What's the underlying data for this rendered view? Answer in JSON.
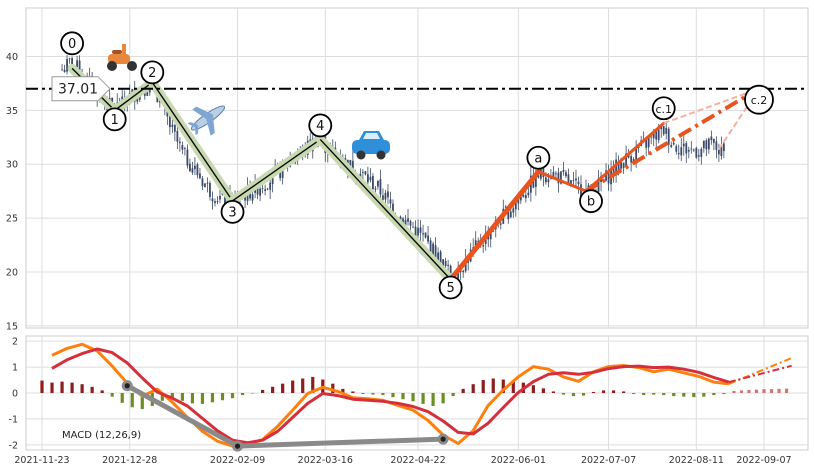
{
  "chart_data": [
    {
      "type": "line",
      "panel": "price",
      "description_type": "candlestick",
      "x_dates": [
        "2021-11-23",
        "2021-12-28",
        "2022-02-09",
        "2022-03-16",
        "2022-04-22",
        "2022-06-01",
        "2022-07-07",
        "2022-08-11",
        "2022-09-07"
      ],
      "y_ticks": [
        15,
        20,
        25,
        30,
        35,
        40
      ],
      "ylim": [
        14.8,
        44.5
      ],
      "grid": true,
      "price_series": [
        [
          "2021-12-01",
          38.8
        ],
        [
          "2021-12-05",
          39.5
        ],
        [
          "2021-12-09",
          38.3
        ],
        [
          "2021-12-13",
          37.2
        ],
        [
          "2021-12-17",
          36.0
        ],
        [
          "2021-12-21",
          35.2
        ],
        [
          "2021-12-25",
          35.5
        ],
        [
          "2021-12-28",
          36.3
        ],
        [
          "2022-01-02",
          37.0
        ],
        [
          "2022-01-06",
          37.6
        ],
        [
          "2022-01-10",
          35.3
        ],
        [
          "2022-01-14",
          33.0
        ],
        [
          "2022-01-18",
          31.0
        ],
        [
          "2022-01-22",
          29.8
        ],
        [
          "2022-01-26",
          28.5
        ],
        [
          "2022-01-30",
          27.3
        ],
        [
          "2022-02-03",
          26.7
        ],
        [
          "2022-02-07",
          26.5
        ],
        [
          "2022-02-12",
          27.2
        ],
        [
          "2022-02-17",
          27.9
        ],
        [
          "2022-02-22",
          28.6
        ],
        [
          "2022-02-27",
          29.6
        ],
        [
          "2022-03-04",
          30.7
        ],
        [
          "2022-03-09",
          31.6
        ],
        [
          "2022-03-13",
          32.4
        ],
        [
          "2022-03-17",
          31.5
        ],
        [
          "2022-03-22",
          30.6
        ],
        [
          "2022-03-27",
          29.6
        ],
        [
          "2022-04-01",
          28.8
        ],
        [
          "2022-04-06",
          27.8
        ],
        [
          "2022-04-11",
          26.2
        ],
        [
          "2022-04-16",
          24.9
        ],
        [
          "2022-04-21",
          23.9
        ],
        [
          "2022-04-26",
          22.6
        ],
        [
          "2022-05-01",
          21.0
        ],
        [
          "2022-05-05",
          19.7
        ],
        [
          "2022-05-10",
          20.8
        ],
        [
          "2022-05-15",
          22.2
        ],
        [
          "2022-05-20",
          23.6
        ],
        [
          "2022-05-25",
          24.9
        ],
        [
          "2022-05-30",
          26.2
        ],
        [
          "2022-06-04",
          27.6
        ],
        [
          "2022-06-09",
          29.0
        ],
        [
          "2022-06-14",
          29.2
        ],
        [
          "2022-06-19",
          28.6
        ],
        [
          "2022-06-24",
          27.8
        ],
        [
          "2022-06-29",
          27.4
        ],
        [
          "2022-07-04",
          28.2
        ],
        [
          "2022-07-09",
          29.5
        ],
        [
          "2022-07-14",
          30.5
        ],
        [
          "2022-07-19",
          31.4
        ],
        [
          "2022-07-24",
          32.3
        ],
        [
          "2022-07-29",
          33.2
        ],
        [
          "2022-08-02",
          31.8
        ],
        [
          "2022-08-07",
          31.4
        ],
        [
          "2022-08-12",
          31.3
        ],
        [
          "2022-08-17",
          31.8
        ],
        [
          "2022-08-22",
          31.0
        ]
      ],
      "horizontal_line": {
        "value": 37.01,
        "label": "37.01",
        "style": "dash-dot"
      },
      "wave_points": [
        {
          "label": "0",
          "date": "2021-12-05",
          "value": 38.9
        },
        {
          "label": "1",
          "date": "2021-12-22",
          "value": 35.0
        },
        {
          "label": "2",
          "date": "2022-01-06",
          "value": 37.6
        },
        {
          "label": "3",
          "date": "2022-02-07",
          "value": 26.6
        },
        {
          "label": "4",
          "date": "2022-03-14",
          "value": 32.3
        },
        {
          "label": "5",
          "date": "2022-05-05",
          "value": 19.3
        },
        {
          "label": "a",
          "date": "2022-06-09",
          "value": 29.3
        },
        {
          "label": "b",
          "date": "2022-06-28",
          "value": 27.5
        },
        {
          "label": "c.1",
          "date": "2022-07-29",
          "value": 33.8
        },
        {
          "label": "c.2",
          "date": "2022-09-05",
          "value": 37.01
        }
      ],
      "projection": {
        "from_date": "2022-08-20",
        "to": "c.2"
      },
      "icons": [
        "scooter-icon",
        "airplane-icon",
        "car-icon"
      ]
    },
    {
      "type": "line",
      "panel": "macd",
      "label": "MACD (12,26,9)",
      "y_ticks": [
        -2,
        -1,
        0,
        1,
        2
      ],
      "ylim": [
        -2.2,
        2.2
      ],
      "grid": true,
      "macd_series": [
        [
          "2021-11-27",
          1.45
        ],
        [
          "2021-12-03",
          1.72
        ],
        [
          "2021-12-09",
          1.88
        ],
        [
          "2021-12-15",
          1.62
        ],
        [
          "2021-12-21",
          1.04
        ],
        [
          "2021-12-27",
          0.38
        ],
        [
          "2022-01-02",
          -0.12
        ],
        [
          "2022-01-08",
          0.15
        ],
        [
          "2022-01-14",
          -0.36
        ],
        [
          "2022-01-20",
          -0.94
        ],
        [
          "2022-01-26",
          -1.48
        ],
        [
          "2022-02-01",
          -1.86
        ],
        [
          "2022-02-07",
          -2.05
        ],
        [
          "2022-02-13",
          -1.98
        ],
        [
          "2022-02-19",
          -1.8
        ],
        [
          "2022-02-25",
          -1.28
        ],
        [
          "2022-03-03",
          -0.66
        ],
        [
          "2022-03-09",
          -0.02
        ],
        [
          "2022-03-15",
          0.22
        ],
        [
          "2022-03-21",
          0.06
        ],
        [
          "2022-03-27",
          -0.18
        ],
        [
          "2022-04-02",
          -0.22
        ],
        [
          "2022-04-08",
          -0.28
        ],
        [
          "2022-04-14",
          -0.48
        ],
        [
          "2022-04-20",
          -0.66
        ],
        [
          "2022-04-26",
          -1.06
        ],
        [
          "2022-05-02",
          -1.62
        ],
        [
          "2022-05-08",
          -1.95
        ],
        [
          "2022-05-14",
          -1.45
        ],
        [
          "2022-05-20",
          -0.48
        ],
        [
          "2022-05-26",
          0.12
        ],
        [
          "2022-06-01",
          0.62
        ],
        [
          "2022-06-07",
          1.02
        ],
        [
          "2022-06-13",
          0.92
        ],
        [
          "2022-06-19",
          0.62
        ],
        [
          "2022-06-25",
          0.45
        ],
        [
          "2022-07-01",
          0.82
        ],
        [
          "2022-07-07",
          1.02
        ],
        [
          "2022-07-13",
          1.06
        ],
        [
          "2022-07-19",
          0.98
        ],
        [
          "2022-07-25",
          0.82
        ],
        [
          "2022-07-31",
          0.92
        ],
        [
          "2022-08-06",
          0.78
        ],
        [
          "2022-08-12",
          0.64
        ],
        [
          "2022-08-18",
          0.42
        ],
        [
          "2022-08-24",
          0.35
        ]
      ],
      "signal_series": [
        [
          "2021-11-27",
          0.95
        ],
        [
          "2021-12-03",
          1.28
        ],
        [
          "2021-12-09",
          1.52
        ],
        [
          "2021-12-15",
          1.7
        ],
        [
          "2021-12-21",
          1.56
        ],
        [
          "2021-12-27",
          1.16
        ],
        [
          "2022-01-02",
          0.58
        ],
        [
          "2022-01-08",
          0.04
        ],
        [
          "2022-01-14",
          -0.2
        ],
        [
          "2022-01-20",
          -0.5
        ],
        [
          "2022-01-26",
          -0.98
        ],
        [
          "2022-02-01",
          -1.46
        ],
        [
          "2022-02-07",
          -1.82
        ],
        [
          "2022-02-13",
          -1.92
        ],
        [
          "2022-02-19",
          -1.82
        ],
        [
          "2022-02-25",
          -1.48
        ],
        [
          "2022-03-03",
          -0.94
        ],
        [
          "2022-03-09",
          -0.4
        ],
        [
          "2022-03-15",
          -0.02
        ],
        [
          "2022-03-21",
          -0.1
        ],
        [
          "2022-03-27",
          -0.24
        ],
        [
          "2022-04-02",
          -0.28
        ],
        [
          "2022-04-08",
          -0.32
        ],
        [
          "2022-04-14",
          -0.4
        ],
        [
          "2022-04-20",
          -0.52
        ],
        [
          "2022-04-26",
          -0.72
        ],
        [
          "2022-05-02",
          -1.08
        ],
        [
          "2022-05-08",
          -1.52
        ],
        [
          "2022-05-14",
          -1.58
        ],
        [
          "2022-05-20",
          -1.16
        ],
        [
          "2022-05-26",
          -0.56
        ],
        [
          "2022-06-01",
          0.02
        ],
        [
          "2022-06-07",
          0.44
        ],
        [
          "2022-06-13",
          0.72
        ],
        [
          "2022-06-19",
          0.78
        ],
        [
          "2022-06-25",
          0.72
        ],
        [
          "2022-07-01",
          0.8
        ],
        [
          "2022-07-07",
          0.94
        ],
        [
          "2022-07-13",
          1.02
        ],
        [
          "2022-07-19",
          1.04
        ],
        [
          "2022-07-25",
          0.98
        ],
        [
          "2022-07-31",
          1.0
        ],
        [
          "2022-08-06",
          0.92
        ],
        [
          "2022-08-12",
          0.8
        ],
        [
          "2022-08-18",
          0.6
        ],
        [
          "2022-08-24",
          0.42
        ]
      ],
      "histogram": [
        [
          "2021-11-23",
          0.48
        ],
        [
          "2021-11-27",
          0.4
        ],
        [
          "2021-12-01",
          0.44
        ],
        [
          "2021-12-05",
          0.4
        ],
        [
          "2021-12-09",
          0.34
        ],
        [
          "2021-12-13",
          0.24
        ],
        [
          "2021-12-17",
          0.1
        ],
        [
          "2021-12-21",
          -0.14
        ],
        [
          "2021-12-25",
          -0.38
        ],
        [
          "2021-12-29",
          -0.55
        ],
        [
          "2022-01-02",
          -0.62
        ],
        [
          "2022-01-06",
          -0.5
        ],
        [
          "2022-01-10",
          -0.3
        ],
        [
          "2022-01-14",
          -0.2
        ],
        [
          "2022-01-18",
          -0.3
        ],
        [
          "2022-01-22",
          -0.4
        ],
        [
          "2022-01-26",
          -0.42
        ],
        [
          "2022-01-30",
          -0.36
        ],
        [
          "2022-02-03",
          -0.28
        ],
        [
          "2022-02-07",
          -0.2
        ],
        [
          "2022-02-11",
          -0.08
        ],
        [
          "2022-02-15",
          -0.02
        ],
        [
          "2022-02-19",
          0.12
        ],
        [
          "2022-02-23",
          0.24
        ],
        [
          "2022-02-27",
          0.36
        ],
        [
          "2022-03-03",
          0.48
        ],
        [
          "2022-03-07",
          0.56
        ],
        [
          "2022-03-11",
          0.62
        ],
        [
          "2022-03-15",
          0.52
        ],
        [
          "2022-03-19",
          0.36
        ],
        [
          "2022-03-23",
          0.16
        ],
        [
          "2022-03-27",
          0.06
        ],
        [
          "2022-03-31",
          -0.04
        ],
        [
          "2022-04-04",
          -0.06
        ],
        [
          "2022-04-08",
          -0.08
        ],
        [
          "2022-04-12",
          -0.16
        ],
        [
          "2022-04-16",
          -0.24
        ],
        [
          "2022-04-20",
          -0.32
        ],
        [
          "2022-04-24",
          -0.42
        ],
        [
          "2022-04-28",
          -0.5
        ],
        [
          "2022-05-02",
          -0.4
        ],
        [
          "2022-05-06",
          -0.12
        ],
        [
          "2022-05-10",
          0.16
        ],
        [
          "2022-05-14",
          0.34
        ],
        [
          "2022-05-18",
          0.5
        ],
        [
          "2022-05-22",
          0.56
        ],
        [
          "2022-05-26",
          0.52
        ],
        [
          "2022-05-30",
          0.46
        ],
        [
          "2022-06-03",
          0.4
        ],
        [
          "2022-06-07",
          0.3
        ],
        [
          "2022-06-11",
          0.18
        ],
        [
          "2022-06-15",
          0.06
        ],
        [
          "2022-06-19",
          -0.06
        ],
        [
          "2022-06-23",
          -0.12
        ],
        [
          "2022-06-27",
          -0.1
        ],
        [
          "2022-07-01",
          0.04
        ],
        [
          "2022-07-05",
          0.1
        ],
        [
          "2022-07-09",
          0.1
        ],
        [
          "2022-07-13",
          0.06
        ],
        [
          "2022-07-17",
          -0.04
        ],
        [
          "2022-07-21",
          -0.08
        ],
        [
          "2022-07-25",
          -0.06
        ],
        [
          "2022-07-29",
          -0.08
        ],
        [
          "2022-08-02",
          -0.12
        ],
        [
          "2022-08-06",
          -0.14
        ],
        [
          "2022-08-10",
          -0.16
        ],
        [
          "2022-08-14",
          -0.14
        ],
        [
          "2022-08-18",
          -0.08
        ],
        [
          "2022-08-22",
          -0.04
        ]
      ],
      "histogram_projection": [
        [
          "2022-08-26",
          0.08
        ],
        [
          "2022-08-29",
          0.1
        ],
        [
          "2022-09-01",
          0.12
        ],
        [
          "2022-09-04",
          0.13
        ],
        [
          "2022-09-07",
          0.15
        ],
        [
          "2022-09-10",
          0.15
        ],
        [
          "2022-09-13",
          0.16
        ],
        [
          "2022-09-16",
          0.17
        ]
      ],
      "line_projection": {
        "macd": [
          [
            "2022-08-24",
            0.35
          ],
          [
            "2022-09-18",
            1.35
          ]
        ],
        "signal": [
          [
            "2022-08-24",
            0.42
          ],
          [
            "2022-09-18",
            1.05
          ]
        ]
      },
      "divergence_points": [
        {
          "date": "2021-12-27",
          "value": 0.28
        },
        {
          "date": "2022-02-09",
          "value": -2.05
        },
        {
          "date": "2022-05-02",
          "value": -1.78
        }
      ]
    }
  ],
  "colors": {
    "up": "#3a4a68",
    "wave": "#c8d8b0",
    "wave_edge": "#0a0a0a",
    "correction": "#e8531e",
    "correction_light": "#f4b0a0",
    "macd": "#ff7f0e",
    "signal": "#d62f3c",
    "hist_pos": "#8b1e1e",
    "hist_neg": "#6b8e23",
    "hist_proj": "#c97a7a",
    "divergence": "#8a8a8a"
  }
}
